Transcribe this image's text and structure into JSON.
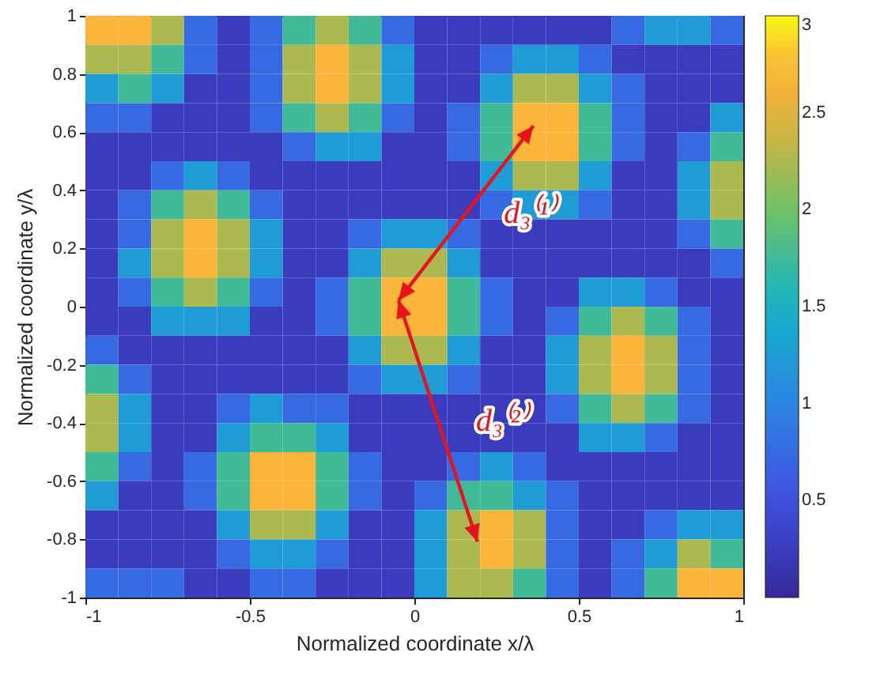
{
  "chart_data": {
    "type": "heatmap",
    "xlabel": "Normalized coordinate x/λ",
    "ylabel": "Normalized coordinate y/λ",
    "x": [
      -0.95,
      -0.85,
      -0.75,
      -0.65,
      -0.55,
      -0.45,
      -0.35,
      -0.25,
      -0.15,
      -0.05,
      0.05,
      0.15,
      0.25,
      0.35,
      0.45,
      0.55,
      0.65,
      0.75,
      0.85,
      0.95
    ],
    "y": [
      0.95,
      0.85,
      0.75,
      0.65,
      0.55,
      0.45,
      0.35,
      0.25,
      0.15,
      0.05,
      -0.05,
      -0.15,
      -0.25,
      -0.35,
      -0.45,
      -0.55,
      -0.65,
      -0.75,
      -0.85,
      -0.95
    ],
    "cells": [
      [
        2.75,
        2.75,
        2.25,
        0.75,
        0.25,
        0.75,
        1.75,
        2.25,
        1.75,
        0.75,
        0.25,
        0.25,
        0.25,
        0.25,
        0.25,
        0.25,
        0.75,
        1.25,
        1.25,
        0.75
      ],
      [
        2.25,
        2.25,
        1.75,
        0.75,
        0.25,
        0.75,
        2.25,
        2.75,
        2.25,
        1.25,
        0.25,
        0.25,
        0.75,
        1.25,
        1.25,
        0.75,
        0.25,
        0.25,
        0.25,
        0.25
      ],
      [
        1.25,
        1.75,
        1.25,
        0.25,
        0.25,
        0.75,
        2.25,
        2.75,
        2.25,
        1.25,
        0.25,
        0.25,
        1.25,
        2.25,
        2.25,
        1.25,
        0.75,
        0.25,
        0.25,
        0.25
      ],
      [
        0.75,
        0.75,
        0.25,
        0.25,
        0.25,
        0.75,
        1.75,
        2.25,
        1.75,
        0.75,
        0.25,
        0.75,
        1.75,
        2.75,
        2.75,
        1.75,
        0.75,
        0.25,
        0.25,
        1.25
      ],
      [
        0.25,
        0.25,
        0.25,
        0.25,
        0.25,
        0.25,
        0.75,
        1.25,
        1.25,
        0.25,
        0.25,
        0.75,
        1.75,
        2.75,
        2.75,
        1.75,
        0.75,
        0.25,
        0.75,
        1.75
      ],
      [
        0.25,
        0.25,
        0.75,
        1.25,
        0.75,
        0.25,
        0.25,
        0.25,
        0.25,
        0.25,
        0.25,
        0.25,
        1.25,
        2.25,
        2.25,
        1.25,
        0.25,
        0.25,
        1.25,
        2.25
      ],
      [
        0.25,
        0.75,
        1.75,
        2.25,
        1.75,
        0.75,
        0.25,
        0.25,
        0.25,
        0.25,
        0.25,
        0.25,
        0.75,
        1.25,
        1.25,
        0.75,
        0.25,
        0.25,
        1.25,
        2.25
      ],
      [
        0.25,
        0.75,
        2.25,
        2.75,
        2.25,
        1.25,
        0.25,
        0.25,
        0.75,
        1.25,
        1.25,
        0.75,
        0.25,
        0.25,
        0.25,
        0.25,
        0.25,
        0.25,
        0.75,
        1.75
      ],
      [
        0.25,
        1.25,
        2.25,
        2.75,
        2.25,
        1.25,
        0.25,
        0.25,
        1.25,
        2.25,
        2.25,
        1.25,
        0.25,
        0.25,
        0.25,
        0.25,
        0.25,
        0.25,
        0.25,
        0.75
      ],
      [
        0.25,
        0.75,
        1.75,
        2.25,
        1.75,
        0.75,
        0.25,
        0.75,
        1.75,
        2.75,
        2.75,
        1.75,
        0.75,
        0.25,
        0.25,
        1.25,
        1.25,
        0.75,
        0.25,
        0.25
      ],
      [
        0.25,
        0.25,
        1.25,
        1.25,
        1.25,
        0.25,
        0.25,
        0.75,
        1.75,
        2.75,
        2.75,
        1.75,
        0.75,
        0.25,
        0.75,
        1.75,
        2.25,
        1.75,
        0.75,
        0.25
      ],
      [
        0.75,
        0.25,
        0.25,
        0.25,
        0.25,
        0.25,
        0.25,
        0.25,
        1.25,
        2.25,
        2.25,
        1.25,
        0.25,
        0.25,
        1.25,
        2.25,
        2.75,
        2.25,
        0.75,
        0.25
      ],
      [
        1.75,
        0.75,
        0.25,
        0.25,
        0.25,
        0.25,
        0.25,
        0.25,
        0.75,
        1.25,
        1.25,
        0.75,
        0.25,
        0.25,
        1.25,
        2.25,
        2.75,
        2.25,
        0.75,
        0.25
      ],
      [
        2.25,
        1.25,
        0.25,
        0.25,
        0.75,
        1.25,
        0.75,
        0.75,
        0.25,
        0.25,
        0.25,
        0.25,
        0.25,
        0.25,
        0.75,
        1.75,
        2.25,
        1.75,
        0.75,
        0.25
      ],
      [
        2.25,
        1.25,
        0.25,
        0.25,
        1.25,
        1.75,
        1.75,
        1.25,
        0.25,
        0.25,
        0.25,
        0.25,
        0.25,
        0.25,
        0.25,
        1.25,
        1.25,
        0.75,
        0.25,
        0.25
      ],
      [
        1.75,
        0.75,
        0.25,
        0.75,
        1.75,
        2.75,
        2.75,
        1.75,
        0.75,
        0.25,
        0.25,
        0.75,
        1.25,
        0.75,
        0.25,
        0.25,
        0.25,
        0.25,
        0.25,
        0.25
      ],
      [
        1.25,
        0.25,
        0.25,
        0.75,
        1.75,
        2.75,
        2.75,
        1.75,
        0.75,
        0.25,
        0.75,
        1.75,
        1.75,
        1.25,
        0.75,
        0.25,
        0.25,
        0.25,
        0.25,
        0.25
      ],
      [
        0.25,
        0.25,
        0.25,
        0.25,
        1.25,
        2.25,
        2.25,
        1.25,
        0.25,
        0.25,
        1.25,
        2.25,
        2.75,
        2.25,
        0.75,
        0.25,
        0.25,
        0.75,
        1.25,
        1.25
      ],
      [
        0.25,
        0.25,
        0.25,
        0.25,
        0.75,
        1.25,
        1.25,
        0.75,
        0.25,
        0.25,
        1.25,
        2.25,
        2.75,
        2.25,
        0.75,
        0.25,
        0.75,
        1.25,
        2.25,
        1.75
      ],
      [
        0.75,
        0.75,
        0.75,
        0.25,
        0.25,
        0.75,
        0.75,
        0.25,
        0.25,
        0.25,
        1.25,
        2.25,
        2.25,
        1.75,
        0.75,
        0.25,
        0.75,
        1.75,
        2.75,
        2.75
      ]
    ],
    "xlim": [
      -1,
      1
    ],
    "ylim": [
      -1,
      1
    ],
    "xticks": [
      -1,
      -0.5,
      0,
      0.5,
      1
    ],
    "yticks": [
      -1,
      -0.8,
      -0.6,
      -0.4,
      -0.2,
      0,
      0.2,
      0.4,
      0.6,
      0.8,
      1
    ],
    "clim": [
      0,
      3
    ],
    "cticks": [
      0.5,
      1,
      1.5,
      2,
      2.5,
      3
    ],
    "annotations": [
      "d₃⁽¹⁾",
      "d₃⁽²⁾"
    ]
  }
}
